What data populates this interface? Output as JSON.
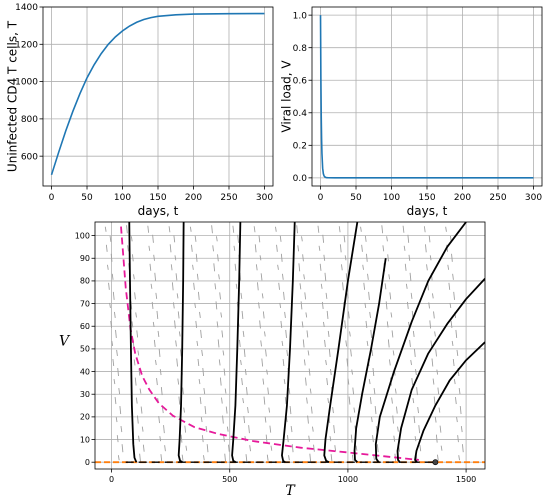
{
  "chart_data": [
    {
      "type": "line",
      "xlabel": "days, t",
      "ylabel": "Uninfected CD4 T cells, T",
      "xlim": [
        -12,
        312
      ],
      "ylim": [
        440,
        1400
      ],
      "xticks": [
        0,
        50,
        100,
        150,
        200,
        250,
        300
      ],
      "yticks": [
        600,
        800,
        1000,
        1200,
        1400
      ],
      "grid": true,
      "series": [
        {
          "color": "#1f77b4",
          "x": [
            0,
            10,
            20,
            30,
            40,
            50,
            60,
            70,
            80,
            90,
            100,
            110,
            120,
            130,
            140,
            150,
            175,
            200,
            250,
            300
          ],
          "y": [
            500,
            620,
            735,
            840,
            935,
            1020,
            1090,
            1150,
            1200,
            1240,
            1272,
            1298,
            1318,
            1333,
            1343,
            1350,
            1358,
            1362,
            1364,
            1365
          ]
        }
      ]
    },
    {
      "type": "line",
      "xlabel": "days, t",
      "ylabel": "Viral load, V",
      "xlim": [
        -12,
        312
      ],
      "ylim": [
        -0.05,
        1.05
      ],
      "xticks": [
        0,
        50,
        100,
        150,
        200,
        250,
        300
      ],
      "yticks": [
        0.0,
        0.2,
        0.4,
        0.6,
        0.8,
        1.0
      ],
      "grid": true,
      "series": [
        {
          "color": "#1f77b4",
          "x": [
            0,
            0.5,
            1,
            1.5,
            2,
            3,
            4,
            5,
            6,
            8,
            10,
            20,
            50,
            100,
            200,
            300
          ],
          "y": [
            1.0,
            0.62,
            0.38,
            0.24,
            0.15,
            0.06,
            0.025,
            0.012,
            0.006,
            0.002,
            0.001,
            0.0,
            0.0,
            0.0,
            0.0,
            0.0
          ]
        }
      ]
    },
    {
      "type": "line",
      "title": "",
      "xlabel": "T",
      "ylabel": "V",
      "xlim": [
        -70,
        1580
      ],
      "ylim": [
        -3,
        106
      ],
      "xticks": [
        0,
        500,
        1000,
        1500
      ],
      "yticks": [
        0,
        10,
        20,
        30,
        40,
        50,
        60,
        70,
        80,
        90,
        100
      ],
      "grid": true,
      "equilibrium": [
        1370,
        0
      ],
      "nullcline_T": {
        "color": "#e6199a",
        "x": [
          40,
          60,
          80,
          100,
          130,
          160,
          200,
          260,
          350,
          450,
          600,
          800,
          1000,
          1200,
          1300
        ],
        "y": [
          104,
          77,
          59,
          48,
          38,
          32,
          26,
          20.5,
          15.5,
          12.5,
          9.3,
          6.4,
          4.3,
          2.1,
          1.0
        ]
      },
      "nullcline_V": {
        "color": "#ff7f0e",
        "y_value": 0
      },
      "trajectories": [
        {
          "color": "#000000",
          "x": [
            75,
            78,
            82,
            86,
            92,
            97,
            105
          ],
          "y": [
            106,
            80,
            50,
            25,
            8,
            2,
            0
          ]
        },
        {
          "color": "#000000",
          "x": [
            305,
            303,
            299,
            294,
            288,
            284,
            290,
            300
          ],
          "y": [
            106,
            80,
            50,
            25,
            10,
            3,
            0.6,
            0
          ]
        },
        {
          "color": "#000000",
          "x": [
            545,
            540,
            532,
            524,
            515,
            510,
            515,
            525
          ],
          "y": [
            106,
            80,
            50,
            25,
            10,
            3,
            0.6,
            0
          ]
        },
        {
          "color": "#000000",
          "x": [
            775,
            767,
            755,
            742,
            728,
            721,
            726,
            735
          ],
          "y": [
            106,
            80,
            50,
            25,
            10,
            3,
            0.6,
            0
          ]
        },
        {
          "color": "#000000",
          "x": [
            1040,
            1000,
            960,
            925,
            905,
            900,
            908,
            920
          ],
          "y": [
            106,
            80,
            50,
            25,
            10,
            3,
            0.6,
            0
          ]
        },
        {
          "color": "#000000",
          "x": [
            1160,
            1132,
            1098,
            1060,
            1035,
            1028,
            1030,
            1040
          ],
          "y": [
            90,
            70,
            50,
            30,
            15,
            5,
            1,
            0
          ]
        },
        {
          "color": "#000000",
          "x": [
            1500,
            1420,
            1340,
            1270,
            1195,
            1135,
            1118,
            1120,
            1130
          ],
          "y": [
            106,
            95,
            80,
            62,
            40,
            20,
            8,
            1.5,
            0
          ]
        },
        {
          "color": "#000000",
          "x": [
            1580,
            1500,
            1420,
            1340,
            1270,
            1225,
            1210,
            1212,
            1220
          ],
          "y": [
            81,
            72,
            61,
            48,
            32,
            15,
            5,
            1,
            0
          ]
        },
        {
          "color": "#000000",
          "x": [
            1580,
            1500,
            1430,
            1370,
            1320,
            1290,
            1284,
            1292
          ],
          "y": [
            53,
            45,
            36,
            25,
            14,
            5,
            1,
            0
          ]
        }
      ],
      "vector_field_color": "#a0a0a0"
    }
  ]
}
